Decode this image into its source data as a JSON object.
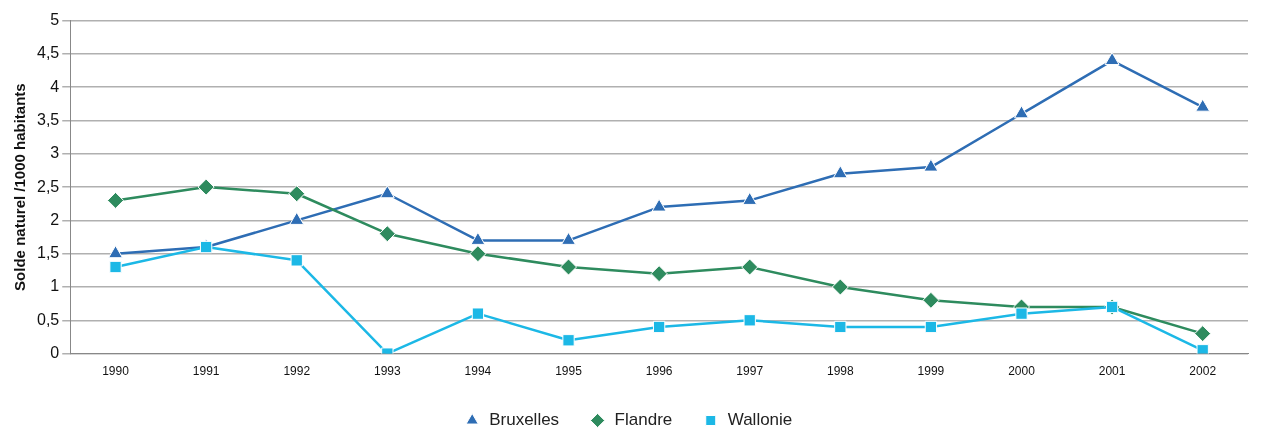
{
  "chart_data": {
    "type": "line",
    "ylabel": "Solde naturel /1000 habitants",
    "categories": [
      "1990",
      "1991",
      "1992",
      "1993",
      "1994",
      "1995",
      "1996",
      "1997",
      "1998",
      "1999",
      "2000",
      "2001",
      "2002"
    ],
    "series": [
      {
        "name": "Bruxelles",
        "color": "#2e6db4",
        "marker": "triangle",
        "values": [
          1.5,
          1.6,
          2.0,
          2.4,
          1.7,
          1.7,
          2.2,
          2.3,
          2.7,
          2.8,
          3.6,
          4.4,
          3.7
        ]
      },
      {
        "name": "Flandre",
        "color": "#2e8b5e",
        "marker": "diamond",
        "values": [
          2.3,
          2.5,
          2.4,
          1.8,
          1.5,
          1.3,
          1.2,
          1.3,
          1.0,
          0.8,
          0.7,
          0.7,
          0.3
        ]
      },
      {
        "name": "Wallonie",
        "color": "#1cb8e6",
        "marker": "square",
        "values": [
          1.3,
          1.6,
          1.4,
          0.0,
          0.6,
          0.2,
          0.4,
          0.5,
          0.4,
          0.4,
          0.6,
          0.7,
          0.05
        ]
      }
    ],
    "ylim": [
      0,
      5
    ],
    "yticks": [
      0,
      {
        "value": 0.5,
        "label": "0,5"
      },
      1,
      {
        "value": 1.5,
        "label": "1,5"
      },
      2,
      {
        "value": 2.5,
        "label": "2,5"
      },
      3,
      {
        "value": 3.5,
        "label": "3,5"
      },
      4,
      {
        "value": 4.5,
        "label": "4,5"
      },
      5
    ],
    "grid": "y",
    "legend": "bottom",
    "line_style": "solid"
  }
}
